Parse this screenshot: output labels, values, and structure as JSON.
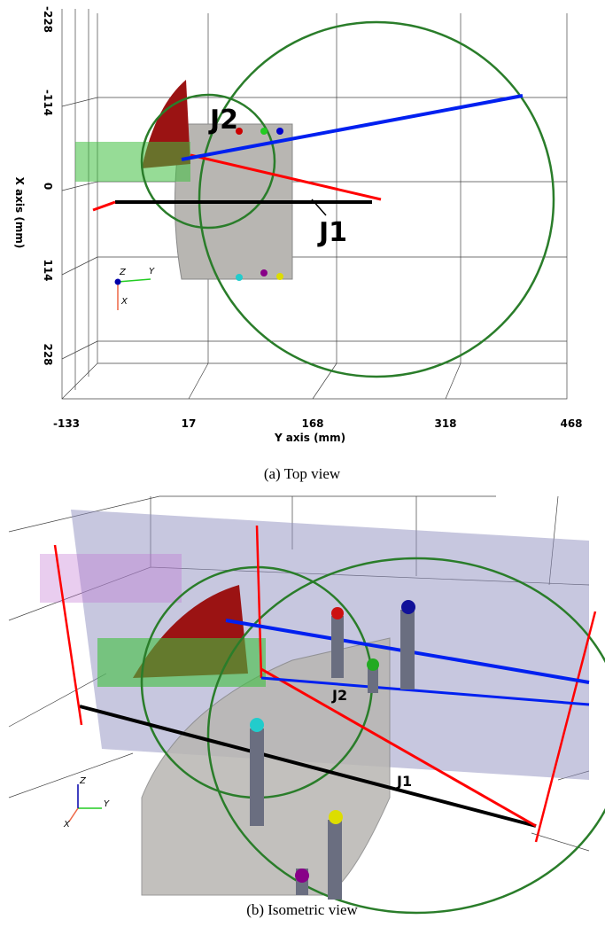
{
  "panels": [
    {
      "x_axis_label": "Y axis (mm)",
      "y_axis_label": "X axis (mm)",
      "x_ticks": [
        "-133",
        "17",
        "168",
        "318",
        "468"
      ],
      "y_ticks": [
        "-228",
        "-114",
        "0",
        "114",
        "228"
      ],
      "annotations": [
        "J2",
        "J1"
      ],
      "triad": [
        "Z",
        "Y",
        "X"
      ],
      "caption": "(a) Top view"
    },
    {
      "annotations": [
        "J2",
        "J1"
      ],
      "triad": [
        "Z",
        "Y",
        "X"
      ],
      "caption": "(b) Isometric view"
    }
  ]
}
